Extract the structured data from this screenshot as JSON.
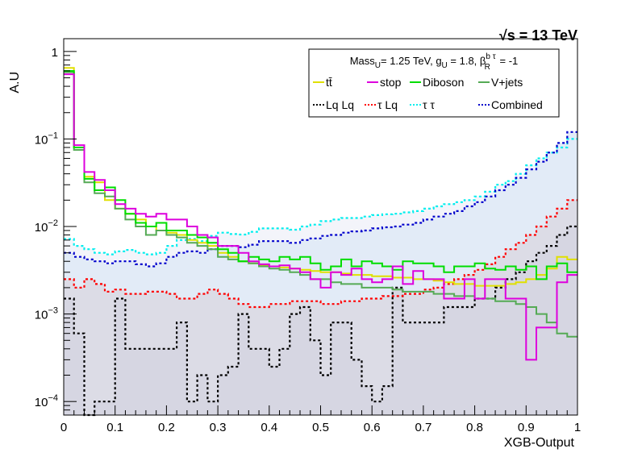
{
  "chart_data": {
    "type": "line",
    "annotation": "√s = 13 TeV",
    "xlabel": "XGB-Output",
    "ylabel": "A.U",
    "xlim": [
      0,
      1
    ],
    "ylim": [
      7e-05,
      1.4
    ],
    "yscale": "log",
    "grid": false,
    "x_ticks": [
      "0",
      "0.1",
      "0.2",
      "0.3",
      "0.4",
      "0.5",
      "0.6",
      "0.7",
      "0.8",
      "0.9",
      "1"
    ],
    "legend": {
      "placement": "top-right",
      "header": {
        "p1": "Mass",
        "s1": "U",
        "p2": "= 1.25 TeV, g",
        "s2": "U",
        "p3": " = 1.8, β",
        "s3a": "b τ",
        "s3b": "R",
        "p4": " = -1"
      }
    },
    "bin_width": 0.02,
    "series": [
      {
        "name": "tt̄",
        "color": "#e0e000",
        "style": "solid",
        "values": [
          0.65,
          0.08,
          0.037,
          0.032,
          0.02,
          0.016,
          0.014,
          0.012,
          0.01,
          0.009,
          0.0085,
          0.008,
          0.007,
          0.0065,
          0.006,
          0.005,
          0.0045,
          0.004,
          0.0038,
          0.0036,
          0.0035,
          0.0034,
          0.0033,
          0.0032,
          0.0031,
          0.003,
          0.003,
          0.0029,
          0.0028,
          0.0028,
          0.0027,
          0.0027,
          0.0026,
          0.0026,
          0.0025,
          0.0025,
          0.0024,
          0.0023,
          0.0022,
          0.0022,
          0.0021,
          0.0021,
          0.0021,
          0.0022,
          0.0023,
          0.0025,
          0.0028,
          0.0033,
          0.0045,
          0.0042
        ]
      },
      {
        "name": "stop",
        "color": "#dd00dd",
        "style": "solid",
        "values": [
          0.55,
          0.085,
          0.042,
          0.034,
          0.026,
          0.018,
          0.016,
          0.014,
          0.013,
          0.014,
          0.012,
          0.012,
          0.01,
          0.008,
          0.0075,
          0.006,
          0.006,
          0.005,
          0.004,
          0.0037,
          0.0035,
          0.0036,
          0.0033,
          0.003,
          0.0025,
          0.002,
          0.003,
          0.0028,
          0.0033,
          0.0025,
          0.0023,
          0.0025,
          0.0035,
          0.0022,
          0.0031,
          0.0025,
          0.0025,
          0.0015,
          0.0015,
          0.0025,
          0.0015,
          0.0025,
          0.0025,
          0.0015,
          0.0015,
          0.0003,
          0.0007,
          0.0007,
          0.0023,
          0.0028
        ]
      },
      {
        "name": "Diboson",
        "color": "#00dd00",
        "style": "solid",
        "values": [
          0.6,
          0.08,
          0.035,
          0.026,
          0.028,
          0.02,
          0.014,
          0.011,
          0.01,
          0.011,
          0.009,
          0.009,
          0.008,
          0.0075,
          0.0065,
          0.0055,
          0.005,
          0.004,
          0.0045,
          0.0042,
          0.004,
          0.0045,
          0.0042,
          0.0045,
          0.0038,
          0.0032,
          0.0035,
          0.0042,
          0.0035,
          0.004,
          0.0038,
          0.0035,
          0.0032,
          0.004,
          0.0038,
          0.0038,
          0.0035,
          0.003,
          0.0035,
          0.0035,
          0.0038,
          0.0033,
          0.0032,
          0.0035,
          0.0032,
          0.0035,
          0.0025,
          0.0035,
          0.0038,
          0.003
        ]
      },
      {
        "name": "V+jets",
        "color": "#55aa55",
        "style": "solid",
        "values": [
          0.58,
          0.075,
          0.032,
          0.024,
          0.022,
          0.016,
          0.012,
          0.01,
          0.008,
          0.009,
          0.008,
          0.0075,
          0.0065,
          0.006,
          0.0055,
          0.0045,
          0.0042,
          0.004,
          0.0038,
          0.0035,
          0.0033,
          0.0032,
          0.003,
          0.0028,
          0.0025,
          0.0025,
          0.0023,
          0.0022,
          0.0022,
          0.002,
          0.002,
          0.002,
          0.0019,
          0.0018,
          0.0018,
          0.0018,
          0.0017,
          0.0017,
          0.0016,
          0.0016,
          0.0015,
          0.0015,
          0.0014,
          0.0014,
          0.0013,
          0.0012,
          0.001,
          0.0008,
          0.0006,
          0.00055
        ]
      },
      {
        "name": "Lq Lq",
        "color": "#000000",
        "style": "dotted",
        "values": [
          0.0015,
          0.0006,
          5e-05,
          0.0001,
          0.0001,
          0.0015,
          0.0004,
          0.0004,
          0.0004,
          0.0004,
          0.0004,
          0.0008,
          0.0001,
          0.0002,
          0.0001,
          0.0002,
          0.00025,
          0.001,
          0.0004,
          0.0004,
          0.00025,
          0.0004,
          0.001,
          0.0012,
          0.0005,
          0.0002,
          0.0008,
          0.0008,
          0.0003,
          0.00015,
          0.0001,
          0.00015,
          0.002,
          0.0008,
          0.0008,
          0.0008,
          0.0008,
          0.0012,
          0.0012,
          0.0012,
          0.0015,
          0.0015,
          0.002,
          0.0025,
          0.003,
          0.004,
          0.005,
          0.006,
          0.008,
          0.01
        ]
      },
      {
        "name": "τ Lq",
        "color": "#ff0000",
        "style": "dotted",
        "values": [
          0.0025,
          0.002,
          0.0025,
          0.0022,
          0.0018,
          0.0019,
          0.0017,
          0.0017,
          0.0018,
          0.0018,
          0.0017,
          0.0015,
          0.0015,
          0.0017,
          0.0019,
          0.0017,
          0.0015,
          0.0013,
          0.0012,
          0.0012,
          0.0013,
          0.0013,
          0.0014,
          0.0014,
          0.0014,
          0.0013,
          0.0013,
          0.0014,
          0.0014,
          0.0015,
          0.0015,
          0.0016,
          0.0016,
          0.0017,
          0.0017,
          0.0019,
          0.002,
          0.0022,
          0.0025,
          0.0028,
          0.0032,
          0.0037,
          0.0045,
          0.0055,
          0.0065,
          0.008,
          0.01,
          0.013,
          0.016,
          0.02
        ]
      },
      {
        "name": "τ τ",
        "color": "#00eeee",
        "style": "dotted",
        "values": [
          0.0072,
          0.006,
          0.0055,
          0.005,
          0.0048,
          0.0052,
          0.0054,
          0.005,
          0.0048,
          0.005,
          0.006,
          0.007,
          0.0072,
          0.0068,
          0.0078,
          0.0085,
          0.0082,
          0.0081,
          0.0087,
          0.0095,
          0.0095,
          0.0095,
          0.0092,
          0.01,
          0.0105,
          0.0115,
          0.012,
          0.0125,
          0.0125,
          0.013,
          0.0135,
          0.0138,
          0.014,
          0.0145,
          0.015,
          0.016,
          0.017,
          0.018,
          0.019,
          0.02,
          0.022,
          0.025,
          0.03,
          0.033,
          0.04,
          0.05,
          0.06,
          0.07,
          0.08,
          0.1
        ]
      },
      {
        "name": "Combined",
        "color": "#0000cc",
        "style": "dotted",
        "values": [
          0.005,
          0.0045,
          0.0042,
          0.004,
          0.0038,
          0.004,
          0.004,
          0.0037,
          0.0035,
          0.0038,
          0.0045,
          0.005,
          0.0052,
          0.005,
          0.0055,
          0.006,
          0.006,
          0.0058,
          0.0062,
          0.0068,
          0.0068,
          0.0068,
          0.0065,
          0.007,
          0.0073,
          0.0078,
          0.008,
          0.0085,
          0.0088,
          0.009,
          0.0095,
          0.0098,
          0.01,
          0.0105,
          0.011,
          0.012,
          0.013,
          0.014,
          0.015,
          0.017,
          0.019,
          0.022,
          0.026,
          0.03,
          0.036,
          0.045,
          0.055,
          0.07,
          0.09,
          0.12
        ]
      }
    ]
  }
}
